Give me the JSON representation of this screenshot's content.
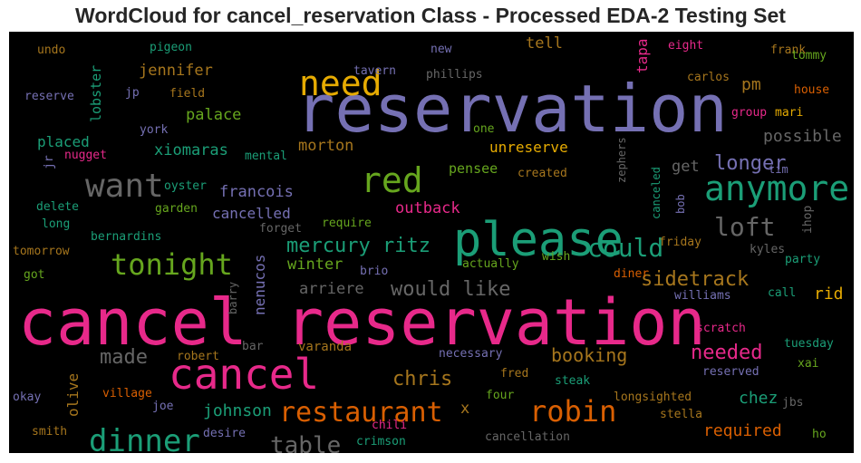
{
  "chart_data": {
    "type": "wordcloud",
    "title": "WordCloud for cancel_reservation Class - Processed EDA-2 Testing Set",
    "background": "#000000",
    "palette": "Dark2",
    "words": [
      {
        "text": "cancel reservation",
        "color": "#e7298a"
      },
      {
        "text": "reservation",
        "color": "#7570b3"
      },
      {
        "text": "please",
        "color": "#1b9e77"
      },
      {
        "text": "cancel",
        "color": "#e7298a"
      },
      {
        "text": "need",
        "color": "#e6ab02"
      },
      {
        "text": "anymore",
        "color": "#1b9e77"
      },
      {
        "text": "want",
        "color": "#666666"
      },
      {
        "text": "red",
        "color": "#66a61e"
      },
      {
        "text": "tonight",
        "color": "#66a61e"
      },
      {
        "text": "dinner",
        "color": "#1b9e77"
      },
      {
        "text": "restaurant",
        "color": "#d95f02"
      },
      {
        "text": "robin",
        "color": "#d95f02"
      },
      {
        "text": "loft",
        "color": "#666666"
      },
      {
        "text": "could",
        "color": "#1b9e77"
      },
      {
        "text": "table",
        "color": "#666666"
      },
      {
        "text": "longer",
        "color": "#7570b3"
      },
      {
        "text": "mercury ritz",
        "color": "#1b9e77"
      },
      {
        "text": "sidetrack",
        "color": "#a6761d"
      },
      {
        "text": "needed",
        "color": "#e7298a"
      },
      {
        "text": "would like",
        "color": "#666666"
      },
      {
        "text": "chris",
        "color": "#a6761d"
      },
      {
        "text": "made",
        "color": "#666666"
      },
      {
        "text": "booking",
        "color": "#a6761d"
      },
      {
        "text": "johnson",
        "color": "#1b9e77"
      },
      {
        "text": "required",
        "color": "#d95f02"
      },
      {
        "text": "chez",
        "color": "#1b9e77"
      },
      {
        "text": "possible",
        "color": "#666666"
      },
      {
        "text": "jennifer",
        "color": "#a6761d"
      },
      {
        "text": "palace",
        "color": "#66a61e"
      },
      {
        "text": "placed",
        "color": "#1b9e77"
      },
      {
        "text": "xiomaras",
        "color": "#1b9e77"
      },
      {
        "text": "morton",
        "color": "#a6761d"
      },
      {
        "text": "unreserve",
        "color": "#e6ab02"
      },
      {
        "text": "pensee",
        "color": "#66a61e"
      },
      {
        "text": "francois",
        "color": "#7570b3"
      },
      {
        "text": "cancelled",
        "color": "#7570b3"
      },
      {
        "text": "outback",
        "color": "#e7298a"
      },
      {
        "text": "winter",
        "color": "#66a61e"
      },
      {
        "text": "arriere",
        "color": "#666666"
      },
      {
        "text": "pm",
        "color": "#a6761d"
      },
      {
        "text": "get",
        "color": "#666666"
      },
      {
        "text": "rid",
        "color": "#e6ab02"
      },
      {
        "text": "lobster",
        "color": "#1b9e77"
      },
      {
        "text": "tell",
        "color": "#a6761d"
      },
      {
        "text": "tapa",
        "color": "#e7298a"
      },
      {
        "text": "nenucos",
        "color": "#7570b3"
      },
      {
        "text": "olive",
        "color": "#a6761d"
      },
      {
        "text": "undo",
        "color": "#a6761d"
      },
      {
        "text": "pigeon",
        "color": "#1b9e77"
      },
      {
        "text": "new",
        "color": "#7570b3"
      },
      {
        "text": "eight",
        "color": "#e7298a"
      },
      {
        "text": "frank",
        "color": "#a6761d"
      },
      {
        "text": "tommy",
        "color": "#66a61e"
      },
      {
        "text": "tavern",
        "color": "#7570b3"
      },
      {
        "text": "phillips",
        "color": "#666666"
      },
      {
        "text": "carlos",
        "color": "#a6761d"
      },
      {
        "text": "house",
        "color": "#d95f02"
      },
      {
        "text": "reserve",
        "color": "#7570b3"
      },
      {
        "text": "jp",
        "color": "#7570b3"
      },
      {
        "text": "field",
        "color": "#a6761d"
      },
      {
        "text": "group",
        "color": "#e7298a"
      },
      {
        "text": "mari",
        "color": "#e6ab02"
      },
      {
        "text": "york",
        "color": "#7570b3"
      },
      {
        "text": "one",
        "color": "#66a61e"
      },
      {
        "text": "jr",
        "color": "#7570b3"
      },
      {
        "text": "nugget",
        "color": "#e7298a"
      },
      {
        "text": "mental",
        "color": "#1b9e77"
      },
      {
        "text": "zephers",
        "color": "#666666"
      },
      {
        "text": "tim",
        "color": "#7570b3"
      },
      {
        "text": "created",
        "color": "#a6761d"
      },
      {
        "text": "canceled",
        "color": "#1b9e77"
      },
      {
        "text": "bob",
        "color": "#7570b3"
      },
      {
        "text": "oyster",
        "color": "#1b9e77"
      },
      {
        "text": "delete",
        "color": "#1b9e77"
      },
      {
        "text": "long",
        "color": "#1b9e77"
      },
      {
        "text": "garden",
        "color": "#66a61e"
      },
      {
        "text": "require",
        "color": "#66a61e"
      },
      {
        "text": "forget",
        "color": "#666666"
      },
      {
        "text": "ihop",
        "color": "#666666"
      },
      {
        "text": "bernardins",
        "color": "#1b9e77"
      },
      {
        "text": "friday",
        "color": "#a6761d"
      },
      {
        "text": "kyles",
        "color": "#666666"
      },
      {
        "text": "tomorrow",
        "color": "#a6761d"
      },
      {
        "text": "wish",
        "color": "#66a61e"
      },
      {
        "text": "party",
        "color": "#1b9e77"
      },
      {
        "text": "got",
        "color": "#66a61e"
      },
      {
        "text": "brio",
        "color": "#7570b3"
      },
      {
        "text": "actually",
        "color": "#66a61e"
      },
      {
        "text": "diner",
        "color": "#d95f02"
      },
      {
        "text": "williams",
        "color": "#7570b3"
      },
      {
        "text": "call",
        "color": "#1b9e77"
      },
      {
        "text": "barry",
        "color": "#666666"
      },
      {
        "text": "scratch",
        "color": "#e7298a"
      },
      {
        "text": "bar",
        "color": "#666666"
      },
      {
        "text": "varanda",
        "color": "#a6761d"
      },
      {
        "text": "robert",
        "color": "#a6761d"
      },
      {
        "text": "necessary",
        "color": "#7570b3"
      },
      {
        "text": "tuesday",
        "color": "#1b9e77"
      },
      {
        "text": "xai",
        "color": "#66a61e"
      },
      {
        "text": "reserved",
        "color": "#7570b3"
      },
      {
        "text": "fred",
        "color": "#a6761d"
      },
      {
        "text": "steak",
        "color": "#1b9e77"
      },
      {
        "text": "village",
        "color": "#d95f02"
      },
      {
        "text": "joe",
        "color": "#7570b3"
      },
      {
        "text": "four",
        "color": "#66a61e"
      },
      {
        "text": "longsighted",
        "color": "#a6761d"
      },
      {
        "text": "jbs",
        "color": "#666666"
      },
      {
        "text": "okay",
        "color": "#7570b3"
      },
      {
        "text": "stella",
        "color": "#a6761d"
      },
      {
        "text": "desire",
        "color": "#7570b3"
      },
      {
        "text": "chili",
        "color": "#e7298a"
      },
      {
        "text": "smith",
        "color": "#a6761d"
      },
      {
        "text": "crimson",
        "color": "#1b9e77"
      },
      {
        "text": "cancellation",
        "color": "#666666"
      },
      {
        "text": "ho",
        "color": "#66a61e"
      },
      {
        "text": "x",
        "color": "#a6761d"
      }
    ]
  }
}
